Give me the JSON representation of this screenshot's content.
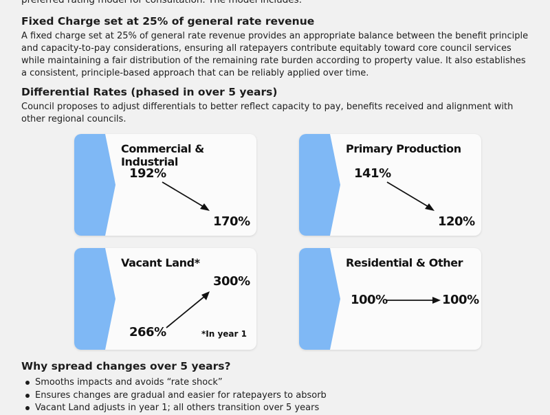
{
  "intro_text": "preferred rating model for consultation. The model includes:",
  "fixed_charge": {
    "heading": "Fixed Charge set at 25% of general rate revenue",
    "body": "A fixed charge set at 25% of general rate revenue provides an appropriate balance between the benefit principle and capacity-to-pay considerations, ensuring all ratepayers contribute equitably toward core council services while maintaining a fair distribution of the remaining rate burden according to property value. It also establishes a consistent, principle-based approach that can be reliably applied over time."
  },
  "differential": {
    "heading": "Differential Rates (phased in over 5 years)",
    "body": "Council proposes to adjust differentials to better reflect capacity to pay, benefits received and alignment with other regional councils."
  },
  "cards": [
    {
      "title": "Commercial & Industrial",
      "from": "192%",
      "to": "170%"
    },
    {
      "title": "Primary Production",
      "from": "141%",
      "to": "120%"
    },
    {
      "title": "Vacant Land*",
      "from": "266%",
      "to": "300%",
      "note": "*In year 1"
    },
    {
      "title": "Residential & Other",
      "from": "100%",
      "to": "100%"
    }
  ],
  "spread": {
    "heading": "Why spread changes over 5 years?",
    "bullets": [
      "Smooths impacts and avoids “rate shock”",
      "Ensures changes are gradual and easier for ratepayers to absorb",
      "Vacant Land adjusts in year 1; all others transition over 5 years"
    ]
  },
  "colors": {
    "tab_blue": "#7fb8f5",
    "text": "#1c1c1c",
    "card_bg": "#fbfbfb"
  }
}
